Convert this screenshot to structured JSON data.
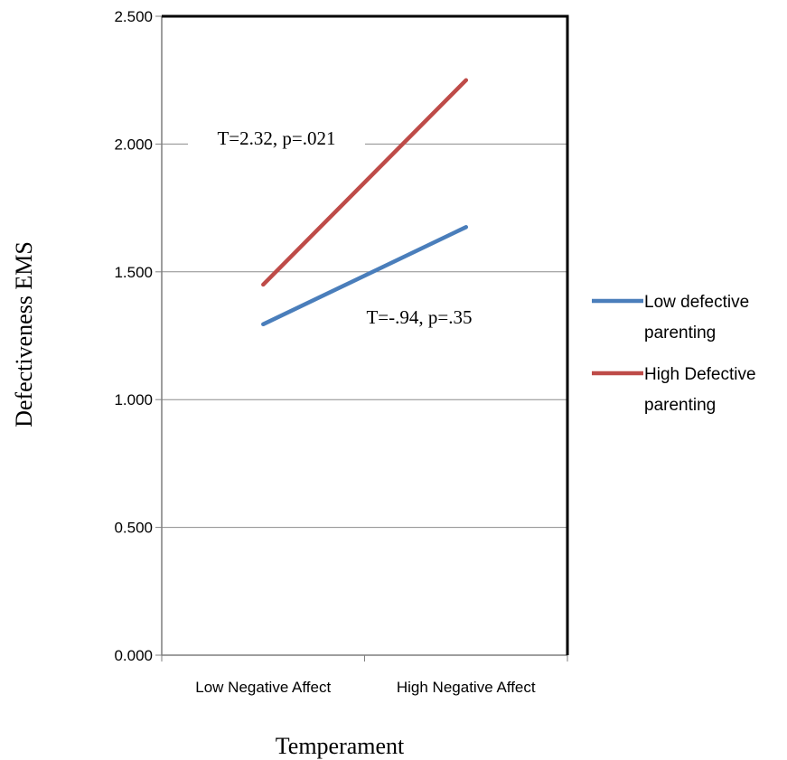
{
  "chart_data": {
    "type": "line",
    "categories": [
      "Low Negative Affect",
      "High Negative Affect"
    ],
    "series": [
      {
        "name": "Low defective parenting",
        "name_lines": [
          "Low defective",
          "parenting"
        ],
        "values": [
          1.295,
          1.675
        ],
        "color": "#4a7ebb"
      },
      {
        "name": "High Defective parenting",
        "name_lines": [
          "High Defective",
          "parenting"
        ],
        "values": [
          1.45,
          2.25
        ],
        "color": "#be4b48"
      }
    ],
    "title": "",
    "xlabel": "Temperament",
    "ylabel": "Defectiveness EMS",
    "ylim": [
      0,
      2.5
    ],
    "yticks": [
      0,
      0.5,
      1.0,
      1.5,
      2.0,
      2.5
    ],
    "ytick_labels": [
      "0.000",
      "0.500",
      "1.000",
      "1.500",
      "2.000",
      "2.500"
    ],
    "annotations": [
      {
        "text": "T=2.32, p=.021",
        "series": "High Defective parenting"
      },
      {
        "text": "T=-.94, p=.35",
        "series": "Low defective parenting"
      }
    ],
    "grid": true,
    "legend": "right"
  }
}
